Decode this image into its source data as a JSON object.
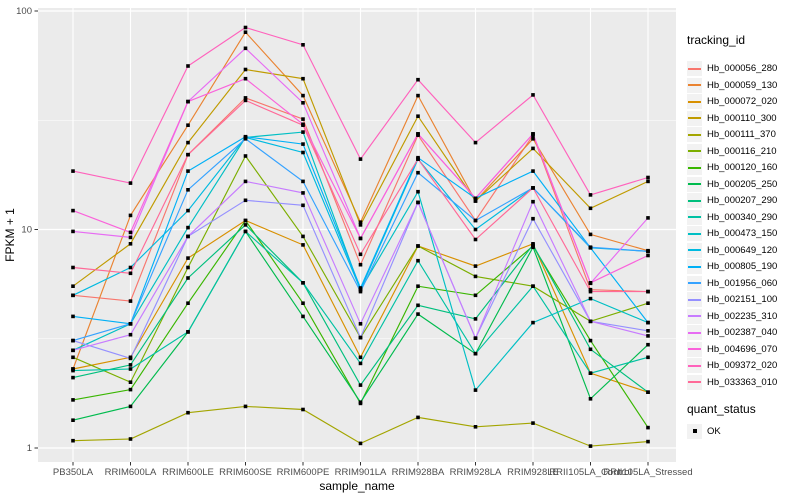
{
  "chart_data": {
    "type": "line",
    "title": "",
    "xlabel": "sample_name",
    "ylabel": "FPKM + 1",
    "y_scale": "log10",
    "y_ticks": [
      1,
      10,
      100
    ],
    "y_minor_ticks": [
      3.162,
      31.62
    ],
    "ylim_log": [
      0.86,
      103
    ],
    "grid": "on",
    "panel_bg": "#EBEBEB",
    "grid_color": "#FFFFFF",
    "axis_text_color": "#4D4D4D",
    "axis_title_color": "#000000",
    "tick_color": "#333333",
    "point_marker": "filled-square",
    "point_color": "#000000",
    "categories": [
      "PB350LA",
      "RRIM600LA",
      "RRIM600LE",
      "RRIM600SE",
      "RRIM600PE",
      "RRIM901LA",
      "RRIM928BA",
      "RRIM928LA",
      "RRIM928LE",
      "RRII105LA_Control",
      "RRII105LA_Stressed"
    ],
    "series": [
      {
        "name": "Hb_000056_280",
        "color": "#F8766D",
        "values": [
          5.0,
          4.7,
          22,
          40,
          32,
          6.9,
          27,
          11,
          27,
          5.3,
          5.2
        ]
      },
      {
        "name": "Hb_000059_130",
        "color": "#EA8331",
        "values": [
          2.3,
          11.6,
          30,
          80,
          41,
          10.8,
          41,
          13.5,
          26,
          9.5,
          8.0
        ]
      },
      {
        "name": "Hb_000072_020",
        "color": "#D89000",
        "values": [
          2.3,
          2.6,
          7.4,
          11,
          8.5,
          2.6,
          8.4,
          6.8,
          8.6,
          2.2,
          1.8
        ]
      },
      {
        "name": "Hb_000110_300",
        "color": "#C09B00",
        "values": [
          5.5,
          8.6,
          25,
          54,
          49,
          10.5,
          33,
          13.5,
          23.5,
          12.5,
          16.6
        ]
      },
      {
        "name": "Hb_000111_370",
        "color": "#A3A500",
        "values": [
          1.08,
          1.1,
          1.45,
          1.55,
          1.5,
          1.05,
          1.38,
          1.25,
          1.3,
          1.02,
          1.07
        ]
      },
      {
        "name": "Hb_000116_210",
        "color": "#7CAE00",
        "values": [
          2.6,
          2.0,
          6.7,
          21.7,
          9.3,
          3.2,
          8.4,
          6.1,
          5.5,
          3.8,
          4.6
        ]
      },
      {
        "name": "Hb_000120_160",
        "color": "#39B600",
        "values": [
          1.66,
          1.85,
          4.6,
          11,
          4.6,
          1.6,
          5.5,
          5.0,
          8.4,
          3.1,
          1.24
        ]
      },
      {
        "name": "Hb_000205_250",
        "color": "#00BB4E",
        "values": [
          1.34,
          1.55,
          3.4,
          9.8,
          4.0,
          1.62,
          4.1,
          2.7,
          8.3,
          1.68,
          2.97
        ]
      },
      {
        "name": "Hb_000207_290",
        "color": "#00BF7D",
        "values": [
          2.1,
          2.4,
          6.0,
          10.5,
          5.7,
          1.94,
          4.5,
          3.9,
          8.5,
          2.83,
          1.8
        ]
      },
      {
        "name": "Hb_000340_290",
        "color": "#00C1A3",
        "values": [
          2.26,
          2.3,
          3.4,
          9.8,
          5.7,
          2.44,
          7.2,
          2.7,
          5.5,
          2.2,
          2.6
        ]
      },
      {
        "name": "Hb_000473_150",
        "color": "#00BFC4",
        "values": [
          2.8,
          3.7,
          10.2,
          26.4,
          27.9,
          5.3,
          14.9,
          1.84,
          3.75,
          4.83,
          3.75
        ]
      },
      {
        "name": "Hb_000649_120",
        "color": "#00BAE0",
        "values": [
          5.0,
          6.7,
          12.2,
          26.4,
          22.5,
          5.3,
          21,
          10,
          15.5,
          8.25,
          7.95
        ]
      },
      {
        "name": "Hb_000805_190",
        "color": "#00B0F6",
        "values": [
          4.0,
          3.7,
          18.5,
          26.6,
          24.6,
          5.4,
          21.3,
          13.9,
          18.5,
          8.25,
          3.75
        ]
      },
      {
        "name": "Hb_001956_060",
        "color": "#35A2FF",
        "values": [
          3.1,
          3.7,
          15.2,
          26,
          16.6,
          5.2,
          18.2,
          11,
          15.5,
          8.3,
          7.95
        ]
      },
      {
        "name": "Hb_002151_100",
        "color": "#9590FF",
        "values": [
          3.1,
          2.57,
          9.3,
          13.6,
          12.9,
          3.2,
          13.3,
          3.18,
          11.2,
          3.8,
          3.44
        ]
      },
      {
        "name": "Hb_002235_310",
        "color": "#C77CFF",
        "values": [
          2.8,
          3.3,
          9.3,
          16.6,
          14.7,
          3.7,
          13.3,
          3.18,
          13.4,
          3.8,
          3.26
        ]
      },
      {
        "name": "Hb_002387_040",
        "color": "#E76BF3",
        "values": [
          9.8,
          9.2,
          38.5,
          67.5,
          38,
          9.1,
          27.4,
          13.9,
          27.4,
          5.67,
          11.3
        ]
      },
      {
        "name": "Hb_004696_070",
        "color": "#FA62DB",
        "values": [
          12.2,
          9.7,
          38.5,
          49,
          30.3,
          9.1,
          27.4,
          13.9,
          27.4,
          5.7,
          7.6
        ]
      },
      {
        "name": "Hb_009372_020",
        "color": "#FF62BC",
        "values": [
          18.5,
          16.3,
          56,
          84,
          70,
          21,
          48.5,
          25,
          41.3,
          14.4,
          17.3
        ]
      },
      {
        "name": "Hb_033363_010",
        "color": "#FF6A98",
        "values": [
          6.7,
          6.3,
          22,
          39,
          30,
          7.7,
          21,
          9.0,
          15.5,
          5.2,
          5.2
        ]
      }
    ],
    "legend": {
      "tracking_title": "tracking_id",
      "quant_title": "quant_status",
      "quant_items": [
        {
          "label": "OK"
        }
      ],
      "position": "right"
    }
  }
}
